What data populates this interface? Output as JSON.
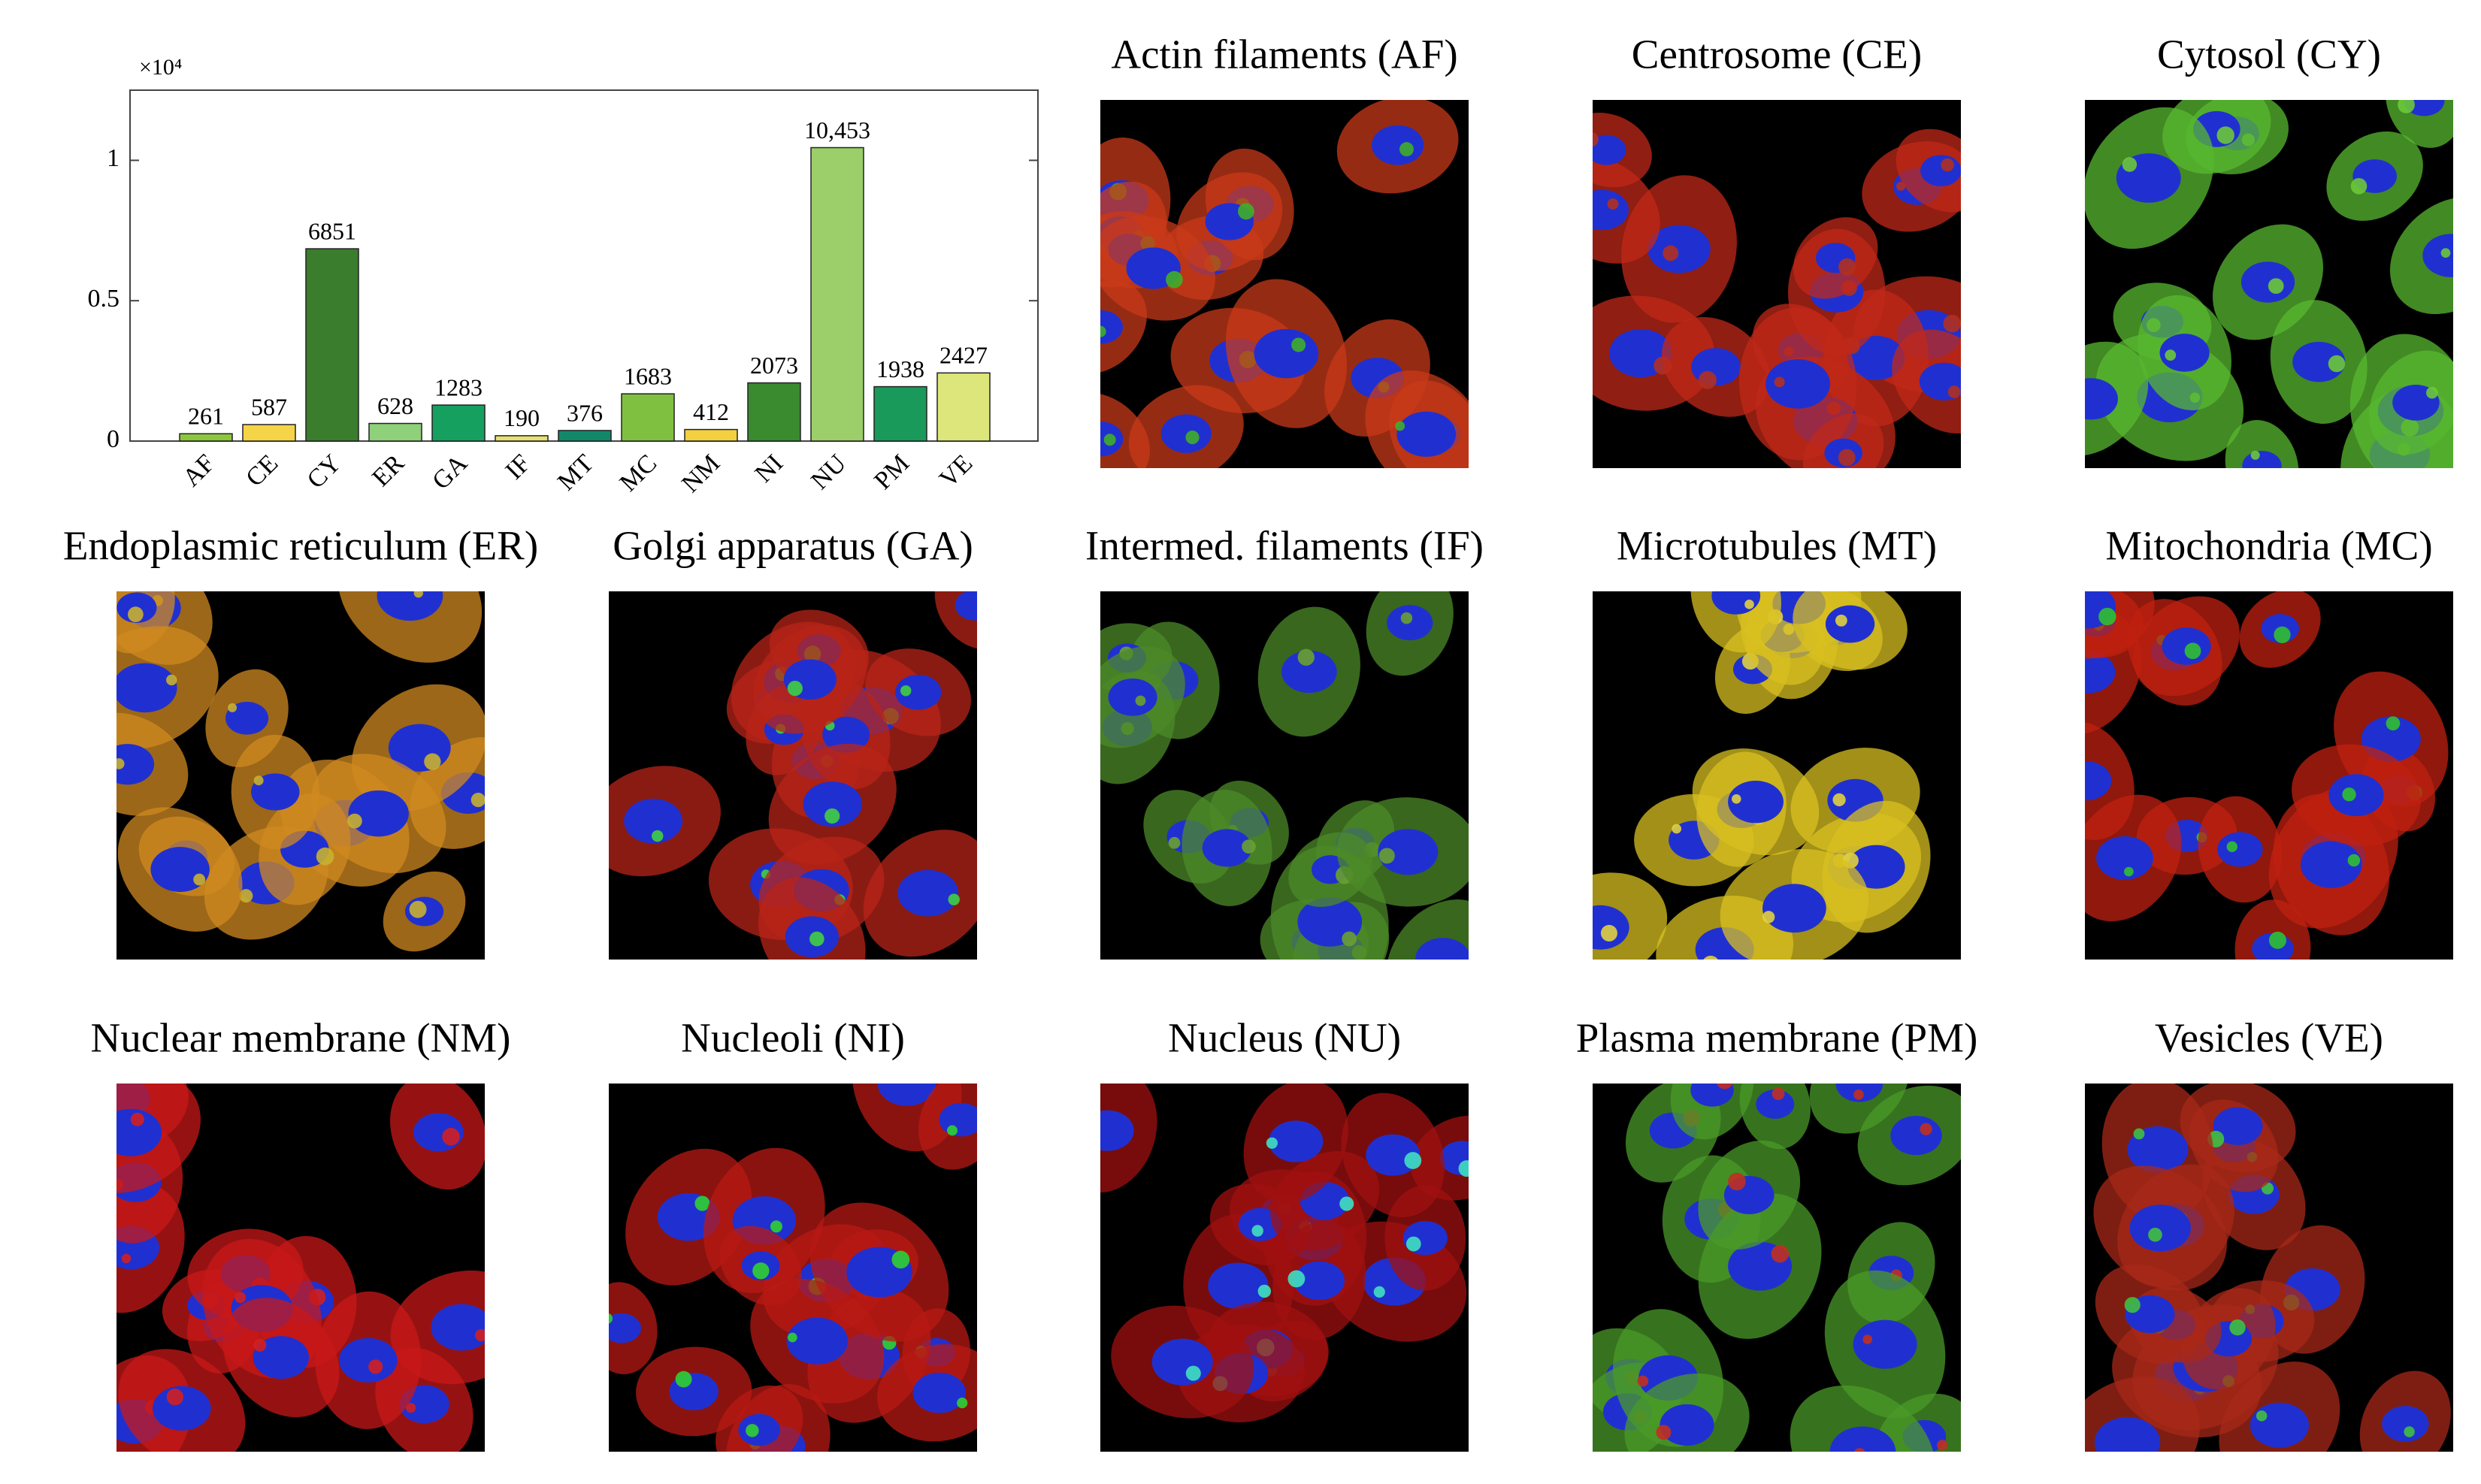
{
  "chart_data": {
    "type": "bar",
    "y_multiplier": "×10⁴",
    "categories": [
      "AF",
      "CE",
      "CY",
      "ER",
      "GA",
      "IF",
      "MT",
      "MC",
      "NM",
      "NI",
      "NU",
      "PM",
      "VE"
    ],
    "values": [
      261,
      587,
      6851,
      628,
      1283,
      190,
      376,
      1683,
      412,
      2073,
      10453,
      1938,
      2427
    ],
    "value_labels": [
      "261",
      "587",
      "6851",
      "628",
      "1283",
      "190",
      "376",
      "1683",
      "412",
      "2073",
      "10,453",
      "1938",
      "2427"
    ],
    "colors": [
      "#8cc63f",
      "#f5d547",
      "#3a7d2c",
      "#8fd07a",
      "#16a060",
      "#e8e070",
      "#12886a",
      "#80c040",
      "#f2d040",
      "#3a8a30",
      "#9ccf6a",
      "#1a9a5a",
      "#dce67a"
    ],
    "ylim": [
      0,
      12500
    ],
    "yticks": [
      0,
      {
        "value": 5000,
        "label": "0.5"
      },
      {
        "value": 10000,
        "label": "1"
      }
    ]
  },
  "panels": [
    {
      "title": "Actin filaments (AF)"
    },
    {
      "title": "Centrosome (CE)"
    },
    {
      "title": "Cytosol (CY)"
    },
    {
      "title": "Endoplasmic reticulum (ER)"
    },
    {
      "title": "Golgi apparatus (GA)"
    },
    {
      "title": "Intermed. filaments (IF)"
    },
    {
      "title": "Microtubules (MT)"
    },
    {
      "title": "Mitochondria (MC)"
    },
    {
      "title": "Nuclear membrane (NM)"
    },
    {
      "title": "Nucleoli (NI)"
    },
    {
      "title": "Nucleus (NU)"
    },
    {
      "title": "Plasma membrane (PM)"
    },
    {
      "title": "Vesicles (VE)"
    }
  ]
}
